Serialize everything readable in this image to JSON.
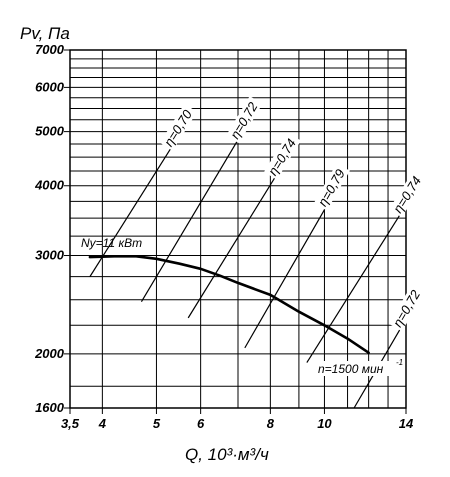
{
  "chart_data": {
    "type": "line",
    "x_scale": "log",
    "y_scale": "log",
    "xlabel": "Q, 10³·м³/ч",
    "ylabel": "Pv, Па",
    "xlim": [
      3.5,
      14
    ],
    "ylim": [
      1600,
      7000
    ],
    "grid": true,
    "x_ticks": [
      3.5,
      4,
      5,
      6,
      8,
      10,
      14
    ],
    "x_tick_labels": [
      "3,5",
      "4",
      "5",
      "6",
      "8",
      "10",
      "14"
    ],
    "y_ticks": [
      1600,
      2000,
      3000,
      4000,
      5000,
      6000,
      7000
    ],
    "y_tick_labels": [
      "1600",
      "2000",
      "3000",
      "4000",
      "5000",
      "6000",
      "7000"
    ],
    "performance_curve": {
      "points": [
        {
          "x": 3.8,
          "y": 2980
        },
        {
          "x": 4.2,
          "y": 2990
        },
        {
          "x": 4.6,
          "y": 2990
        },
        {
          "x": 5.0,
          "y": 2960
        },
        {
          "x": 5.5,
          "y": 2900
        },
        {
          "x": 6.0,
          "y": 2840
        },
        {
          "x": 6.5,
          "y": 2760
        },
        {
          "x": 7.0,
          "y": 2680
        },
        {
          "x": 8.0,
          "y": 2550
        },
        {
          "x": 9.0,
          "y": 2380
        },
        {
          "x": 10.0,
          "y": 2250
        },
        {
          "x": 11.0,
          "y": 2130
        },
        {
          "x": 12.0,
          "y": 2010
        }
      ]
    },
    "efficiency_lines": [
      {
        "label": "η=0,70",
        "points": [
          {
            "x": 3.8,
            "y": 2750
          },
          {
            "x": 5.4,
            "y": 4800
          }
        ]
      },
      {
        "label": "η=0,72",
        "points": [
          {
            "x": 4.7,
            "y": 2480
          },
          {
            "x": 7.1,
            "y": 4950
          }
        ]
      },
      {
        "label": "η=0,74",
        "points": [
          {
            "x": 5.7,
            "y": 2320
          },
          {
            "x": 8.3,
            "y": 4260
          }
        ]
      },
      {
        "label": "η=0,79",
        "points": [
          {
            "x": 7.2,
            "y": 2050
          },
          {
            "x": 10.2,
            "y": 3750
          }
        ]
      },
      {
        "label": "η=0,74",
        "points": [
          {
            "x": 9.3,
            "y": 1930
          },
          {
            "x": 13.9,
            "y": 3650
          }
        ]
      },
      {
        "label": "η=0,72",
        "points": [
          {
            "x": 11.3,
            "y": 1600
          },
          {
            "x": 13.9,
            "y": 2280
          }
        ]
      }
    ],
    "annotations": {
      "power": "Ny=11 кВт",
      "speed": "n=1500 мин",
      "speed_exponent": "-1"
    }
  }
}
